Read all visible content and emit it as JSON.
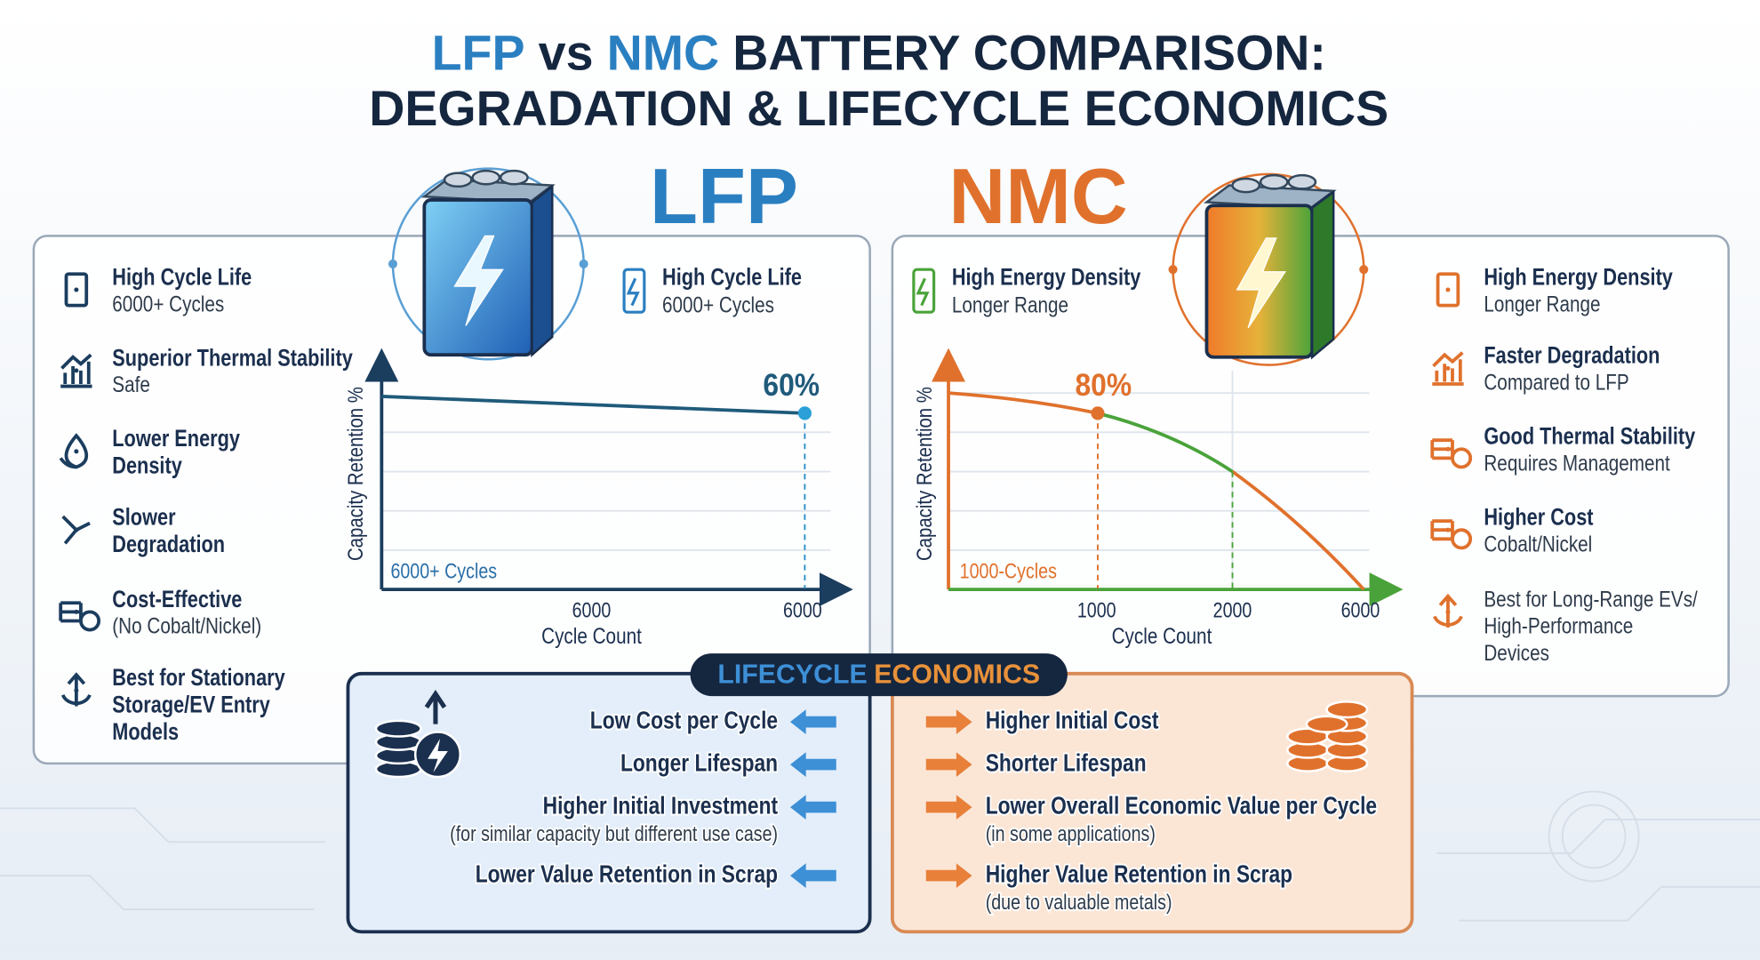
{
  "title": {
    "line1": {
      "lfp": "LFP",
      "vs": "vs",
      "nmc": "NMC",
      "rest": "BATTERY COMPARISON:"
    },
    "line2": "DEGRADATION & LIFECYCLE ECONOMICS"
  },
  "lfp": {
    "label": "LFP",
    "features": [
      {
        "title": [
          "High Cycle Life"
        ],
        "detail": [
          "6000+ Cycles"
        ]
      },
      {
        "title": [
          "Superior Thermal Stability"
        ],
        "detail": [
          "Safe"
        ]
      },
      {
        "title": [
          "Lower Energy",
          "Density"
        ]
      },
      {
        "title": [
          "Slower",
          "Degradation"
        ]
      },
      {
        "title": [
          "Cost-Effective"
        ],
        "detail": [
          "(No Cobalt/Nickel)"
        ]
      },
      {
        "title": [
          "Best for Stationary",
          "Storage/EV Entry",
          "Models"
        ]
      }
    ],
    "highlight": {
      "title": "High Cycle Life",
      "detail": "6000+ Cycles"
    },
    "chart": {
      "y_label": "Capacity Retention %",
      "x_label": "Cycle Count",
      "x_ticks": [
        "6000",
        "6000"
      ],
      "annotation": "60%",
      "note": "6000+ Cycles"
    }
  },
  "nmc": {
    "label": "NMC",
    "features": [
      {
        "title": [
          "High Energy Density"
        ],
        "detail": [
          "Longer Range"
        ]
      },
      {
        "title": [
          "Faster Degradation"
        ],
        "detail": [
          "Compared to LFP"
        ]
      },
      {
        "title": [
          "Good Thermal Stability"
        ],
        "detail": [
          "Requires Management"
        ]
      },
      {
        "title": [
          "Higher Cost"
        ],
        "detail": [
          "Cobalt/Nickel"
        ]
      },
      {
        "detail": [
          "Best for Long-Range EVs/",
          "High-Performance",
          "Devices"
        ]
      }
    ],
    "highlight": {
      "title": "High Energy Density",
      "detail": "Longer Range"
    },
    "chart": {
      "y_label": "Capacity Retention %",
      "x_label": "Cycle Count",
      "x_ticks": [
        "1000",
        "2000",
        "6000"
      ],
      "annotation": "80%",
      "note": "1000-Cycles"
    }
  },
  "economics": {
    "title": {
      "part1": "LIFECYCLE",
      "part2": "ECONOMICS"
    },
    "lfp_items": [
      {
        "text": "Low Cost per Cycle"
      },
      {
        "text": "Longer Lifespan"
      },
      {
        "text": "Higher Initial Investment",
        "note": "(for similar capacity but different use case)"
      },
      {
        "text": "Lower Value Retention in Scrap"
      }
    ],
    "nmc_items": [
      {
        "text": "Higher Initial Cost"
      },
      {
        "text": "Shorter Lifespan"
      },
      {
        "text": "Lower Overall Economic Value per Cycle",
        "note": "(in some applications)"
      },
      {
        "text": "Higher Value Retention in Scrap",
        "note": "(due to valuable metals)"
      }
    ]
  }
}
